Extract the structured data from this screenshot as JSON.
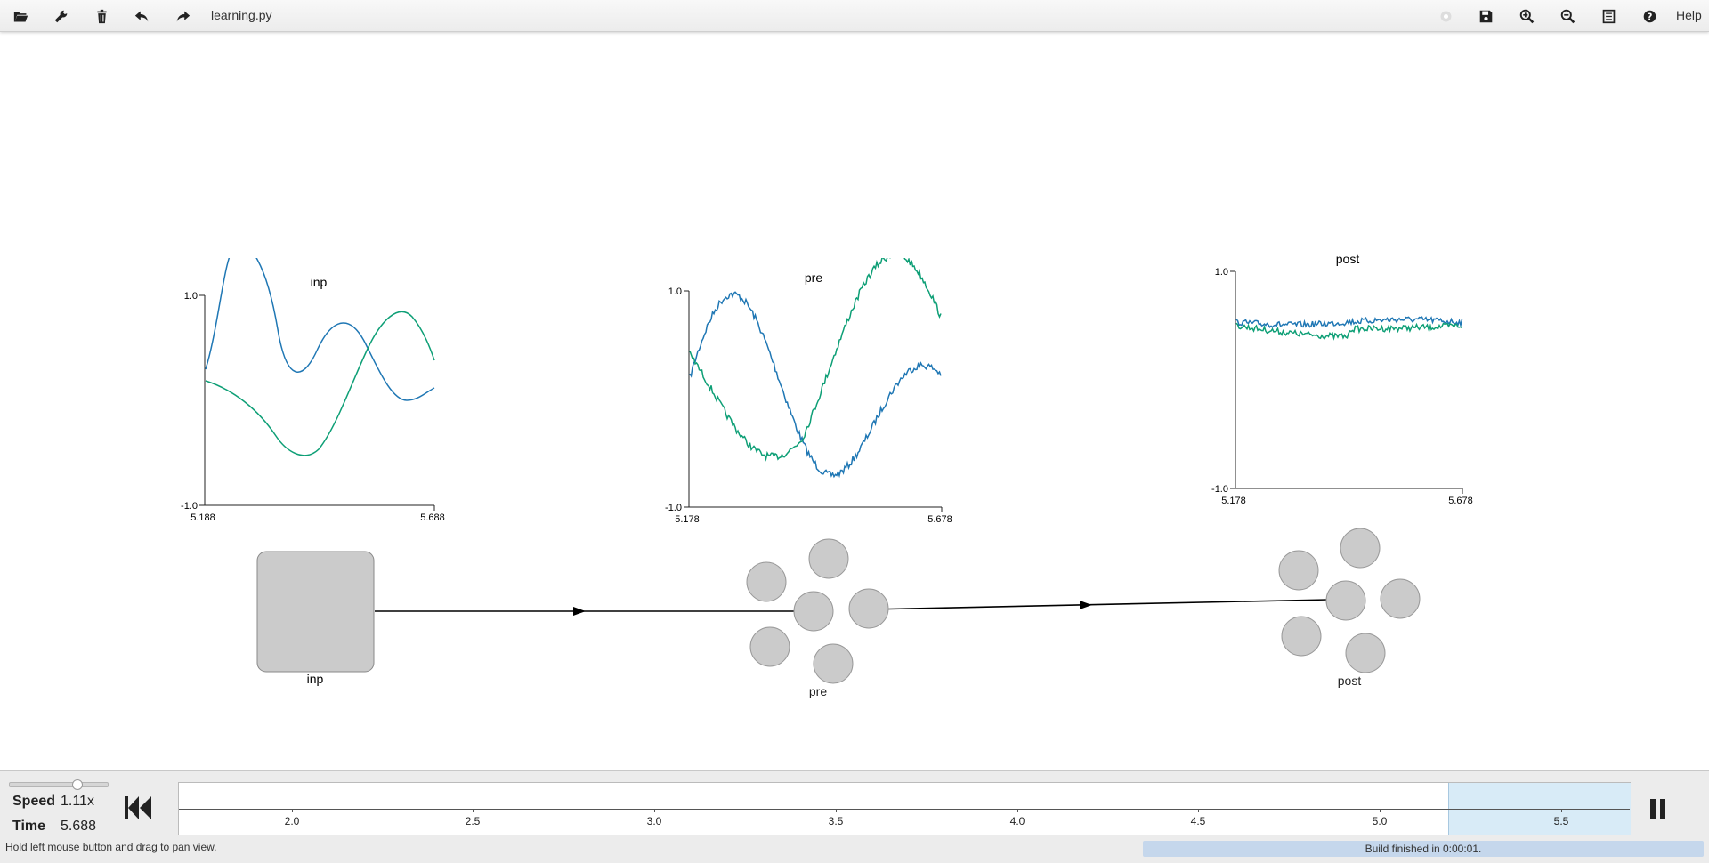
{
  "toolbar": {
    "filename": "learning.py",
    "help_label": "Help",
    "left_icons": [
      "open-folder-icon",
      "wrench-icon",
      "trash-icon",
      "undo-icon",
      "redo-icon"
    ],
    "right_icons": [
      "disabled-circle-icon",
      "save-icon",
      "zoom-in-icon",
      "zoom-out-icon",
      "minimap-icon",
      "help-icon"
    ]
  },
  "plots": [
    {
      "name": "inp",
      "title": "inp",
      "x_range": [
        "5.188",
        "5.688"
      ],
      "y_range": [
        "1.0",
        "-1.0"
      ],
      "series_colors": [
        "#1f77b4",
        "#0e9f76"
      ]
    },
    {
      "name": "pre",
      "title": "pre",
      "x_range": [
        "5.178",
        "5.678"
      ],
      "y_range": [
        "1.0",
        "-1.0"
      ],
      "series_colors": [
        "#1f77b4",
        "#0e9f76"
      ]
    },
    {
      "name": "post",
      "title": "post",
      "x_range": [
        "5.178",
        "5.678"
      ],
      "y_range": [
        "1.0",
        "-1.0"
      ],
      "series_colors": [
        "#1f77b4",
        "#0e9f76"
      ]
    }
  ],
  "network": {
    "nodes": [
      {
        "name": "inp",
        "label": "inp",
        "kind": "node"
      },
      {
        "name": "pre",
        "label": "pre",
        "kind": "ensemble"
      },
      {
        "name": "post",
        "label": "post",
        "kind": "ensemble"
      }
    ],
    "connections": [
      {
        "from": "inp",
        "to": "pre"
      },
      {
        "from": "pre",
        "to": "post"
      }
    ]
  },
  "bottom": {
    "speed_label": "Speed",
    "speed_value": "1.11x",
    "time_label": "Time",
    "time_value": "5.688",
    "hint": "Hold left mouse button and drag to pan view.",
    "status": "Build finished in 0:00:01.",
    "timeline_ticks": [
      "2.0",
      "2.5",
      "3.0",
      "3.5",
      "4.0",
      "4.5",
      "5.0",
      "5.5"
    ]
  }
}
